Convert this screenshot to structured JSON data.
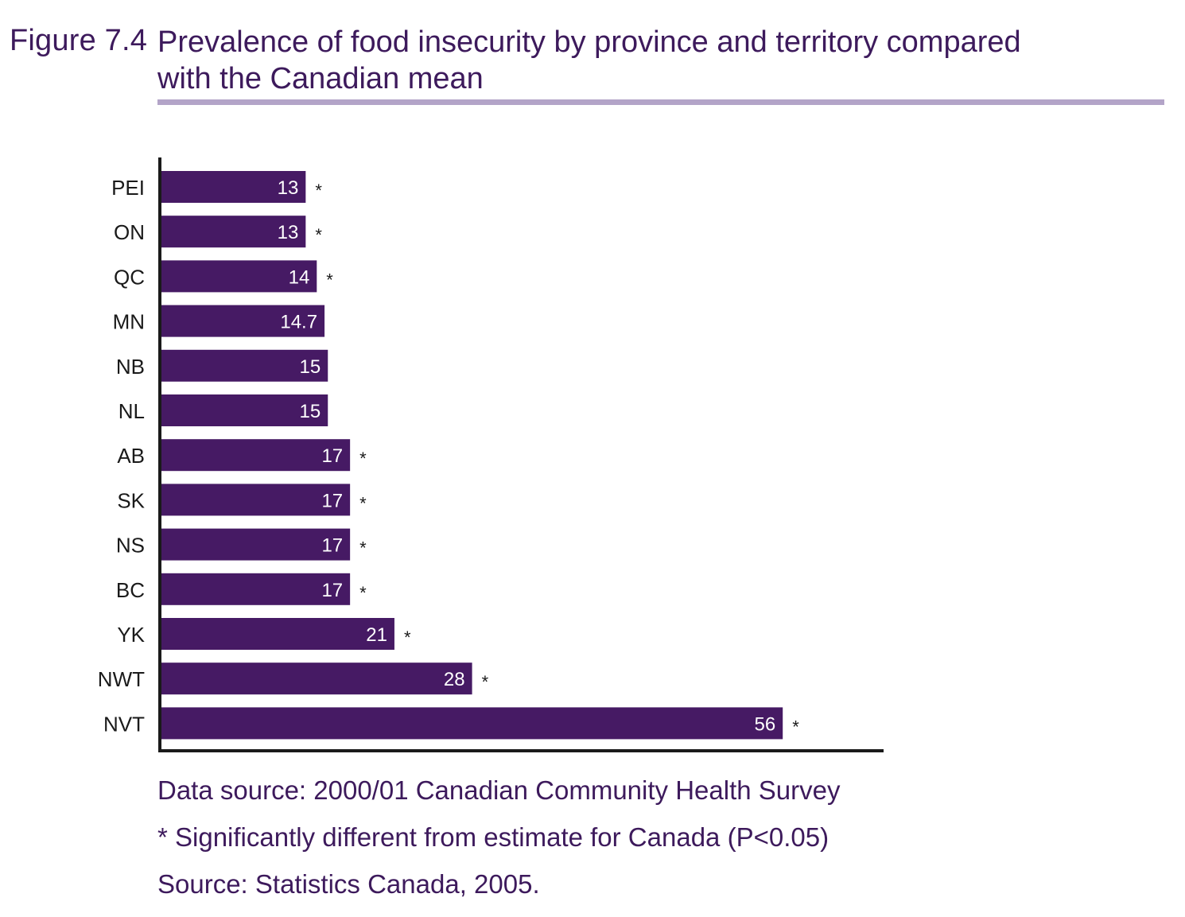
{
  "figure": {
    "label": "Figure 7.4",
    "title_line1": "Prevalence of food insecurity by province and territory compared",
    "title_line2": "with the Canadian mean"
  },
  "colors": {
    "bar": "#461a64",
    "title": "#3d1a5c",
    "rule": "#b3a4c8",
    "axis": "#1a1a1a"
  },
  "chart_data": {
    "type": "bar",
    "orientation": "horizontal",
    "categories": [
      "PEI",
      "ON",
      "QC",
      "MN",
      "NB",
      "NL",
      "AB",
      "SK",
      "NS",
      "BC",
      "YK",
      "NWT",
      "NVT"
    ],
    "values": [
      13,
      13,
      14,
      14.7,
      15,
      15,
      17,
      17,
      17,
      17,
      21,
      28,
      56
    ],
    "value_labels": [
      "13",
      "13",
      "14",
      "14.7",
      "15",
      "15",
      "17",
      "17",
      "17",
      "17",
      "21",
      "28",
      "56"
    ],
    "significant": [
      true,
      true,
      true,
      false,
      false,
      false,
      true,
      true,
      true,
      true,
      true,
      true,
      true
    ],
    "significance_marker": "*",
    "grid": false,
    "legend": "none"
  },
  "notes": {
    "data_source": "Data source: 2000/01 Canadian Community Health Survey",
    "significance": "*  Significantly different from estimate for Canada (P<0.05)",
    "source": "Source: Statistics Canada, 2005."
  }
}
